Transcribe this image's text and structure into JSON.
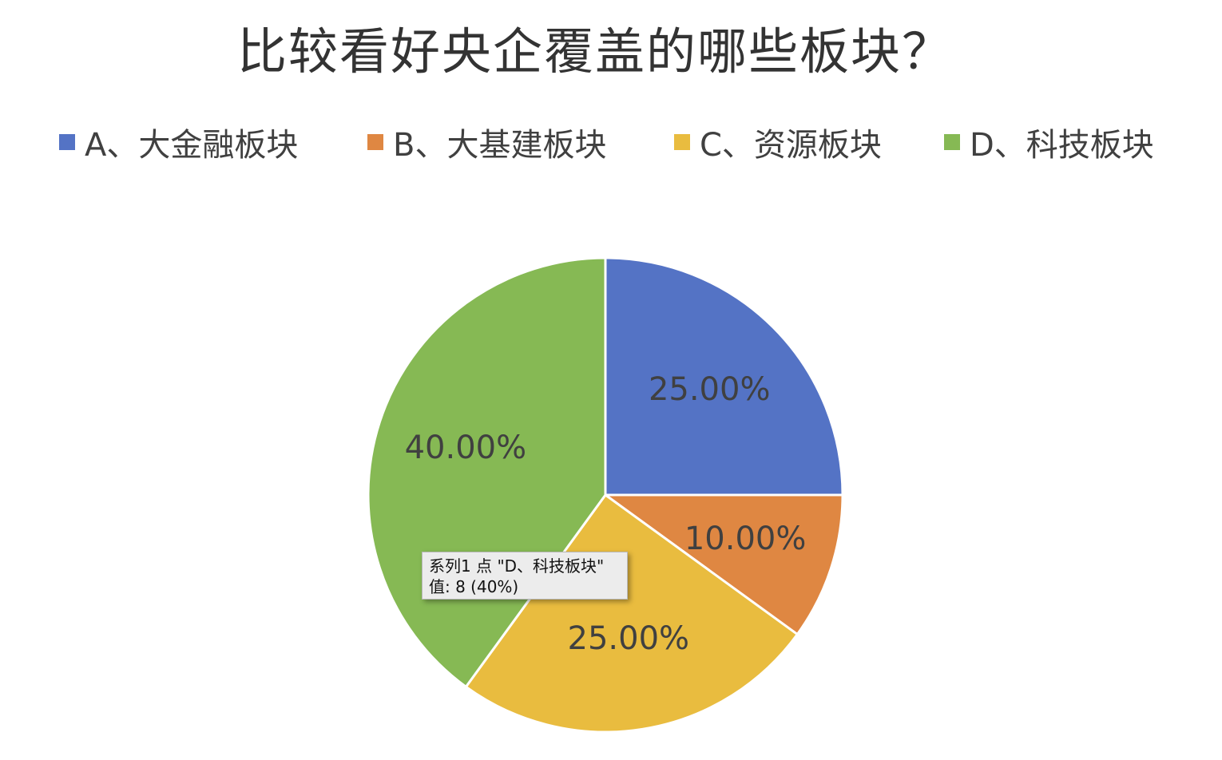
{
  "chart_data": {
    "type": "pie",
    "title": "比较看好央企覆盖的哪些板块？",
    "categories": [
      "A、大金融板块",
      "B、大基建板块",
      "C、资源板块",
      "D、科技板块"
    ],
    "values": [
      5,
      2,
      5,
      8
    ],
    "percent_labels": [
      "25.00%",
      "10.00%",
      "25.00%",
      "40.00%"
    ],
    "colors": [
      "#5473c5",
      "#df8742",
      "#e9bc3f",
      "#86b954"
    ],
    "legend_position": "top"
  },
  "tooltip": {
    "line1": "系列1 点 \"D、科技板块\"",
    "line2": "值: 8 (40%)"
  }
}
